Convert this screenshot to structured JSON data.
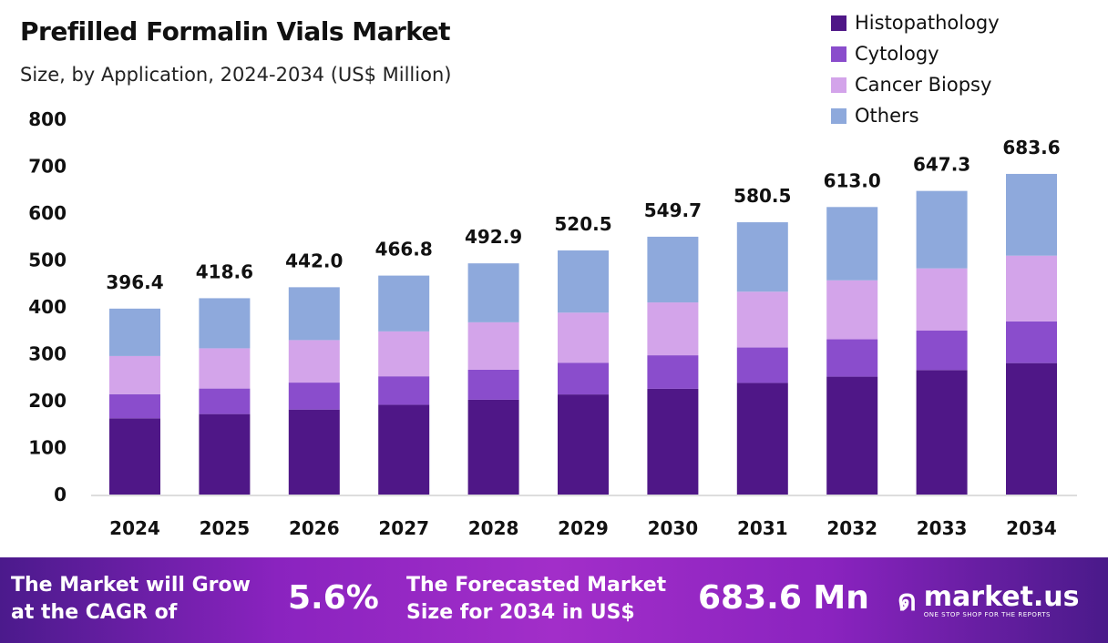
{
  "chart_data": {
    "type": "stacked-bar",
    "title": "Prefilled Formalin Vials Market",
    "subtitle": "Size, by Application, 2024-2034 (US$ Million)",
    "categories": [
      "2024",
      "2025",
      "2026",
      "2027",
      "2028",
      "2029",
      "2030",
      "2031",
      "2032",
      "2033",
      "2034"
    ],
    "series": [
      {
        "name": "Histopathology",
        "color": "#4f1787",
        "values": [
          162.5,
          171.6,
          181.2,
          191.4,
          202.1,
          213.4,
          225.4,
          238.0,
          251.3,
          265.4,
          280.3
        ]
      },
      {
        "name": "Cytology",
        "color": "#8a4dcc",
        "values": [
          51.5,
          54.4,
          57.5,
          60.7,
          64.1,
          67.7,
          71.5,
          75.5,
          79.7,
          84.1,
          88.9
        ]
      },
      {
        "name": "Cancer Biopsy",
        "color": "#d3a4ea",
        "values": [
          81.3,
          85.8,
          90.6,
          95.7,
          101.0,
          106.7,
          112.7,
          119.0,
          125.7,
          132.7,
          140.1
        ]
      },
      {
        "name": "Others",
        "color": "#8ea9dc",
        "values": [
          101.1,
          106.8,
          112.7,
          119.0,
          125.7,
          132.7,
          140.1,
          148.0,
          156.3,
          165.1,
          174.3
        ]
      }
    ],
    "totals": [
      "396.4",
      "418.6",
      "442.0",
      "466.8",
      "492.9",
      "520.5",
      "549.7",
      "580.5",
      "613.0",
      "647.3",
      "683.6"
    ],
    "ylim": [
      0,
      800
    ],
    "yticks": [
      "0",
      "100",
      "200",
      "300",
      "400",
      "500",
      "600",
      "700",
      "800"
    ],
    "xlabel": "",
    "ylabel": "",
    "grid": false,
    "legend_position": "top-right"
  },
  "footer": {
    "cagr_text_1": "The Market will Grow",
    "cagr_text_2": "at the CAGR of",
    "cagr_value": "5.6%",
    "forecast_text_1": "The Forecasted Market",
    "forecast_text_2": "Size for 2034 in US$",
    "forecast_value": "683.6 Mn",
    "brand": "market.us",
    "brand_tagline": "ONE STOP SHOP FOR THE REPORTS"
  }
}
